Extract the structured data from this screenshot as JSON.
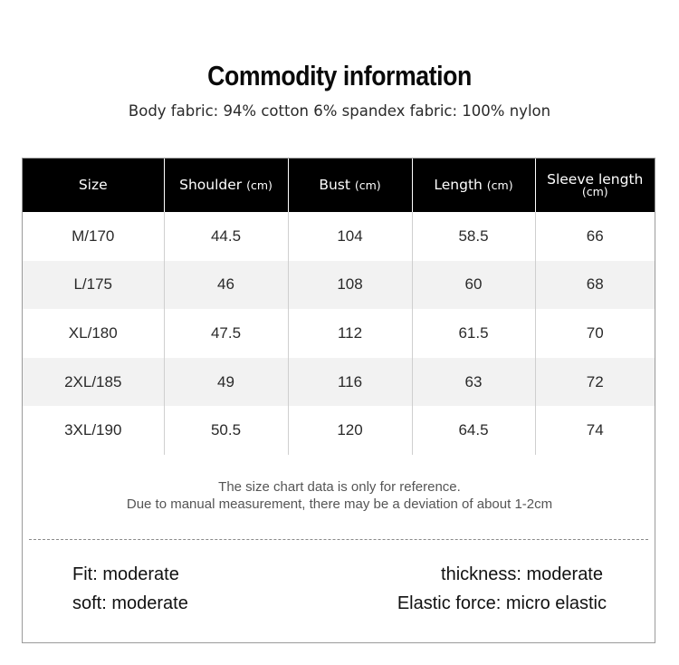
{
  "header": {
    "title": "Commodity information",
    "subtitle": "Body fabric: 94% cotton 6% spandex fabric: 100% nylon"
  },
  "size_table": {
    "columns": [
      {
        "label": "Size",
        "unit": ""
      },
      {
        "label": "Shoulder",
        "unit": "(cm)"
      },
      {
        "label": "Bust",
        "unit": "(cm)"
      },
      {
        "label": "Length",
        "unit": "(cm)"
      },
      {
        "label": "Sleeve length",
        "unit": "(cm)"
      }
    ],
    "rows": [
      [
        "M/170",
        "44.5",
        "104",
        "58.5",
        "66"
      ],
      [
        "L/175",
        "46",
        "108",
        "60",
        "68"
      ],
      [
        "XL/180",
        "47.5",
        "112",
        "61.5",
        "70"
      ],
      [
        "2XL/185",
        "49",
        "116",
        "63",
        "72"
      ],
      [
        "3XL/190",
        "50.5",
        "120",
        "64.5",
        "74"
      ]
    ]
  },
  "note": {
    "line1": "The size chart data is only for reference.",
    "line2": "Due to manual measurement, there may be a deviation of about 1-2cm"
  },
  "attributes": {
    "fit": "Fit: moderate",
    "soft": "soft: moderate",
    "thickness": "thickness: moderate",
    "elastic": "Elastic force: micro elastic"
  },
  "colors": {
    "header_bg": "#000000",
    "header_text": "#ffffff",
    "stripe": "#f2f2f2"
  }
}
